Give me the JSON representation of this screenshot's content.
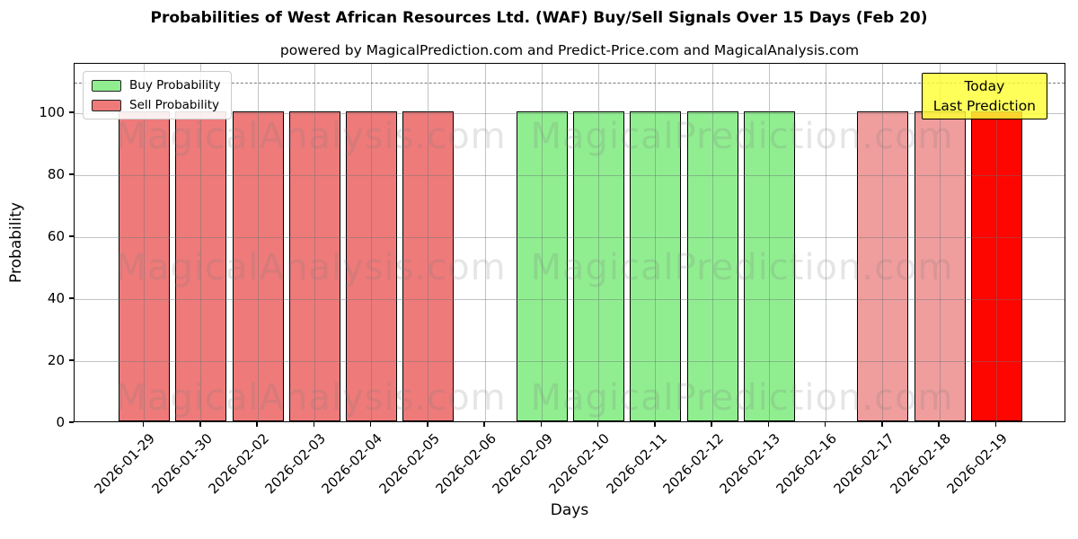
{
  "title": "Probabilities of West African Resources Ltd. (WAF) Buy/Sell Signals Over 15 Days (Feb 20)",
  "subtitle": "powered by MagicalPrediction.com and Predict-Price.com and MagicalAnalysis.com",
  "legend": [
    {
      "label": "Buy Probability",
      "color": "#90ee90"
    },
    {
      "label": "Sell Probability",
      "color": "#ee7a7a"
    }
  ],
  "annotation": {
    "line1": "Today",
    "line2": "Last Prediction",
    "bg_color": "#ffff36"
  },
  "watermarks": {
    "left": "MagicalAnalysis.com",
    "right": "MagicalPrediction.com"
  },
  "chart_data": {
    "type": "bar",
    "title": "Probabilities of West African Resources Ltd. (WAF) Buy/Sell Signals Over 15 Days (Feb 20)",
    "xlabel": "Days",
    "ylabel": "Probability",
    "ylim": [
      0,
      116
    ],
    "yticks": [
      0,
      20,
      40,
      60,
      80,
      100
    ],
    "grid": true,
    "dashed_line_y": 110,
    "legend_position": "upper left",
    "categories": [
      "2026-01-29",
      "2026-01-30",
      "2026-02-02",
      "2026-02-03",
      "2026-02-04",
      "2026-02-05",
      "2026-02-06",
      "2026-02-09",
      "2026-02-10",
      "2026-02-11",
      "2026-02-12",
      "2026-02-13",
      "2026-02-16",
      "2026-02-17",
      "2026-02-18",
      "2026-02-19"
    ],
    "series": [
      {
        "name": "Buy Probability",
        "color": "#90ee90",
        "values": [
          0,
          0,
          0,
          0,
          0,
          0,
          0,
          100,
          100,
          100,
          100,
          100,
          0,
          0,
          0,
          0
        ]
      },
      {
        "name": "Sell Probability",
        "color": "#f08080",
        "values": [
          100,
          100,
          100,
          100,
          100,
          100,
          0,
          0,
          0,
          0,
          0,
          0,
          0,
          100,
          100,
          100
        ]
      }
    ],
    "bars": [
      {
        "date": "2026-01-29",
        "signal": "sell",
        "value": 100,
        "color": "#ee7a7a"
      },
      {
        "date": "2026-01-30",
        "signal": "sell",
        "value": 100,
        "color": "#ee7a7a"
      },
      {
        "date": "2026-02-02",
        "signal": "sell",
        "value": 100,
        "color": "#ee7a7a"
      },
      {
        "date": "2026-02-03",
        "signal": "sell",
        "value": 100,
        "color": "#ee7a7a"
      },
      {
        "date": "2026-02-04",
        "signal": "sell",
        "value": 100,
        "color": "#ee7a7a"
      },
      {
        "date": "2026-02-05",
        "signal": "sell",
        "value": 100,
        "color": "#ee7a7a"
      },
      {
        "date": "2026-02-06",
        "signal": "none",
        "value": 0,
        "color": null
      },
      {
        "date": "2026-02-09",
        "signal": "buy",
        "value": 100,
        "color": "#90ee90"
      },
      {
        "date": "2026-02-10",
        "signal": "buy",
        "value": 100,
        "color": "#90ee90"
      },
      {
        "date": "2026-02-11",
        "signal": "buy",
        "value": 100,
        "color": "#90ee90"
      },
      {
        "date": "2026-02-12",
        "signal": "buy",
        "value": 100,
        "color": "#90ee90"
      },
      {
        "date": "2026-02-13",
        "signal": "buy",
        "value": 100,
        "color": "#90ee90"
      },
      {
        "date": "2026-02-16",
        "signal": "none",
        "value": 0,
        "color": null
      },
      {
        "date": "2026-02-17",
        "signal": "sell",
        "value": 100,
        "color": "#f09d9d"
      },
      {
        "date": "2026-02-18",
        "signal": "sell",
        "value": 100,
        "color": "#f09d9d"
      },
      {
        "date": "2026-02-19",
        "signal": "sell-today",
        "value": 100,
        "color": "#fe0600"
      }
    ]
  }
}
